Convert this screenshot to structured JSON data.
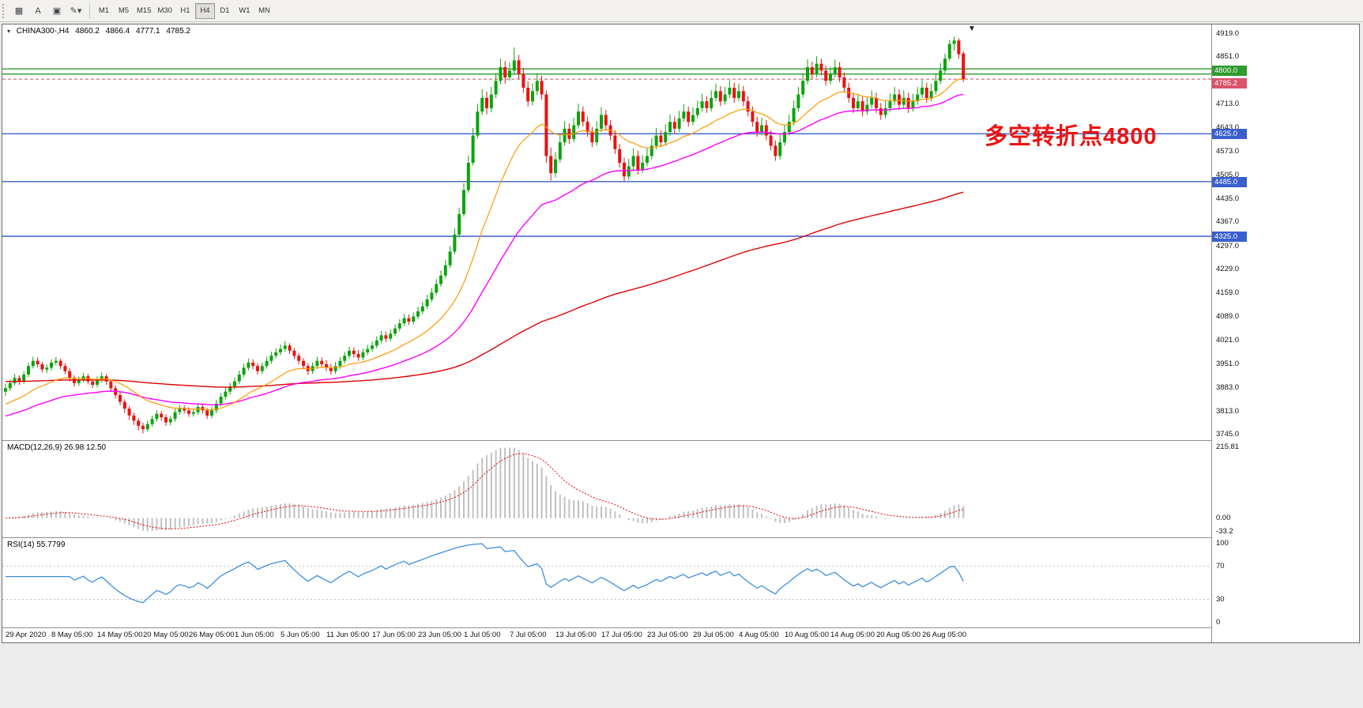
{
  "toolbar": {
    "tools": [
      {
        "name": "indicators-icon",
        "glyph": "▦"
      },
      {
        "name": "text-tool-icon",
        "glyph": "A"
      },
      {
        "name": "textbox-tool-icon",
        "glyph": "▣"
      },
      {
        "name": "drawing-tools-icon",
        "glyph": "✎▾"
      }
    ],
    "timeframes": [
      "M1",
      "M5",
      "M15",
      "M30",
      "H1",
      "H4",
      "D1",
      "W1",
      "MN"
    ],
    "active_timeframe": "H4"
  },
  "chart": {
    "info": {
      "symbol": "CHINA300-,H4",
      "open": "4860.2",
      "high": "4866.4",
      "low": "4777.1",
      "close": "4785.2"
    },
    "annotation": "多空转折点4800",
    "annotation_color": "#EE1111",
    "price_ticks": [
      "4919.0",
      "4851.0",
      "4713.0",
      "4643.0",
      "4573.0",
      "4505.0",
      "4435.0",
      "4367.0",
      "4297.0",
      "4229.0",
      "4159.0",
      "4089.0",
      "4021.0",
      "3951.0",
      "3883.0",
      "3813.0",
      "3745.0"
    ],
    "labels": {
      "resistance": {
        "text": "4800.0",
        "value": 4800,
        "bg": "#2E9B2E"
      },
      "current": {
        "text": "4785.2",
        "value": 4785.2,
        "bg": "#D9536B"
      },
      "blue_bg": "#3A5FCD",
      "blue_levels": [
        {
          "text": "4625.0",
          "value": 4625
        },
        {
          "text": "4485.0",
          "value": 4485
        },
        {
          "text": "4325.0",
          "value": 4325
        }
      ]
    }
  },
  "macd": {
    "title": "MACD(12,26,9) 26.98 12.50",
    "fast": 12,
    "slow": 26,
    "signal": 9,
    "scale_max": "215.81",
    "scale_zero": "0.00",
    "scale_min": "-33.2"
  },
  "rsi": {
    "title": "RSI(14) 55.7799",
    "period": 14,
    "levels": [
      70,
      30
    ],
    "scale": [
      "100",
      "70",
      "30",
      "0"
    ]
  },
  "chart_data": {
    "type": "candlestick",
    "symbol": "CHINA300-",
    "timeframe": "H4",
    "ylim": [
      3728,
      4945
    ],
    "bars_per_label": 10,
    "x_labels": [
      "29 Apr 2020",
      "8 May 05:00",
      "14 May 05:00",
      "20 May 05:00",
      "26 May 05:00",
      "1 Jun 05:00",
      "5 Jun 05:00",
      "11 Jun 05:00",
      "17 Jun 05:00",
      "23 Jun 05:00",
      "1 Jul 05:00",
      "7 Jul 05:00",
      "13 Jul 05:00",
      "17 Jul 05:00",
      "23 Jul 05:00",
      "29 Jul 05:00",
      "4 Aug 05:00",
      "10 Aug 05:00",
      "14 Aug 05:00",
      "20 Aug 05:00",
      "26 Aug 05:00"
    ],
    "levels": {
      "green": [
        4815,
        4800
      ],
      "blue": [
        4625,
        4485,
        4325
      ],
      "current": 4785.2
    },
    "colors": {
      "up": "#0CA30C",
      "down": "#E81212",
      "ma_fast": "#FF9900",
      "ma_mid": "#FF00FF",
      "ma_slow": "#E00000",
      "level_green": "#2E9B2E",
      "level_blue": "#3A5FCD",
      "current_line": "#C94F63",
      "macd_hist": "#C0C0C0",
      "macd_signal": "#E00000",
      "rsi": "#3F8EDE"
    },
    "candles": [
      [
        3870,
        3892,
        3858,
        3880
      ],
      [
        3880,
        3905,
        3872,
        3895
      ],
      [
        3895,
        3922,
        3888,
        3910
      ],
      [
        3910,
        3918,
        3890,
        3900
      ],
      [
        3900,
        3930,
        3893,
        3920
      ],
      [
        3920,
        3955,
        3912,
        3945
      ],
      [
        3945,
        3972,
        3938,
        3960
      ],
      [
        3960,
        3970,
        3941,
        3950
      ],
      [
        3950,
        3958,
        3926,
        3935
      ],
      [
        3935,
        3950,
        3924,
        3940
      ],
      [
        3940,
        3964,
        3932,
        3955
      ],
      [
        3955,
        3971,
        3947,
        3960
      ],
      [
        3960,
        3967,
        3936,
        3945
      ],
      [
        3945,
        3953,
        3921,
        3930
      ],
      [
        3930,
        3938,
        3900,
        3910
      ],
      [
        3910,
        3918,
        3885,
        3895
      ],
      [
        3895,
        3914,
        3887,
        3905
      ],
      [
        3905,
        3925,
        3897,
        3915
      ],
      [
        3915,
        3922,
        3891,
        3900
      ],
      [
        3900,
        3908,
        3880,
        3890
      ],
      [
        3890,
        3915,
        3882,
        3905
      ],
      [
        3905,
        3926,
        3897,
        3915
      ],
      [
        3915,
        3921,
        3890,
        3900
      ],
      [
        3900,
        3906,
        3870,
        3880
      ],
      [
        3880,
        3888,
        3850,
        3860
      ],
      [
        3860,
        3868,
        3830,
        3840
      ],
      [
        3840,
        3848,
        3808,
        3820
      ],
      [
        3820,
        3828,
        3788,
        3800
      ],
      [
        3800,
        3809,
        3773,
        3785
      ],
      [
        3785,
        3793,
        3756,
        3770
      ],
      [
        3770,
        3779,
        3748,
        3760
      ],
      [
        3760,
        3785,
        3752,
        3775
      ],
      [
        3775,
        3800,
        3767,
        3790
      ],
      [
        3790,
        3815,
        3782,
        3805
      ],
      [
        3805,
        3813,
        3785,
        3795
      ],
      [
        3795,
        3803,
        3770,
        3780
      ],
      [
        3780,
        3800,
        3771,
        3790
      ],
      [
        3790,
        3820,
        3782,
        3810
      ],
      [
        3810,
        3831,
        3802,
        3820
      ],
      [
        3820,
        3830,
        3806,
        3815
      ],
      [
        3815,
        3824,
        3796,
        3805
      ],
      [
        3805,
        3820,
        3797,
        3810
      ],
      [
        3810,
        3835,
        3802,
        3825
      ],
      [
        3825,
        3833,
        3806,
        3815
      ],
      [
        3815,
        3822,
        3790,
        3800
      ],
      [
        3800,
        3826,
        3792,
        3815
      ],
      [
        3815,
        3846,
        3807,
        3835
      ],
      [
        3835,
        3866,
        3827,
        3855
      ],
      [
        3855,
        3882,
        3847,
        3870
      ],
      [
        3870,
        3896,
        3862,
        3885
      ],
      [
        3885,
        3912,
        3877,
        3900
      ],
      [
        3900,
        3932,
        3892,
        3920
      ],
      [
        3920,
        3952,
        3912,
        3940
      ],
      [
        3940,
        3967,
        3932,
        3955
      ],
      [
        3955,
        3965,
        3936,
        3945
      ],
      [
        3945,
        3953,
        3920,
        3930
      ],
      [
        3930,
        3956,
        3922,
        3945
      ],
      [
        3945,
        3972,
        3937,
        3960
      ],
      [
        3960,
        3987,
        3952,
        3975
      ],
      [
        3975,
        3997,
        3967,
        3985
      ],
      [
        3985,
        4008,
        3977,
        3995
      ],
      [
        3995,
        4018,
        3987,
        4005
      ],
      [
        4005,
        4012,
        3980,
        3990
      ],
      [
        3990,
        3998,
        3965,
        3975
      ],
      [
        3975,
        3983,
        3950,
        3960
      ],
      [
        3960,
        3968,
        3935,
        3945
      ],
      [
        3945,
        3953,
        3920,
        3930
      ],
      [
        3930,
        3956,
        3922,
        3945
      ],
      [
        3945,
        3972,
        3937,
        3960
      ],
      [
        3960,
        3970,
        3940,
        3950
      ],
      [
        3950,
        3962,
        3930,
        3940
      ],
      [
        3940,
        3951,
        3920,
        3930
      ],
      [
        3930,
        3957,
        3922,
        3945
      ],
      [
        3945,
        3971,
        3937,
        3960
      ],
      [
        3960,
        3986,
        3952,
        3975
      ],
      [
        3975,
        4002,
        3967,
        3990
      ],
      [
        3990,
        4000,
        3970,
        3980
      ],
      [
        3980,
        3992,
        3960,
        3970
      ],
      [
        3970,
        3996,
        3962,
        3985
      ],
      [
        3985,
        4007,
        3977,
        3995
      ],
      [
        3995,
        4017,
        3987,
        4005
      ],
      [
        4005,
        4032,
        3997,
        4020
      ],
      [
        4020,
        4047,
        4012,
        4035
      ],
      [
        4035,
        4046,
        4015,
        4025
      ],
      [
        4025,
        4052,
        4017,
        4040
      ],
      [
        4040,
        4067,
        4032,
        4055
      ],
      [
        4055,
        4082,
        4047,
        4070
      ],
      [
        4070,
        4097,
        4062,
        4085
      ],
      [
        4085,
        4096,
        4065,
        4075
      ],
      [
        4075,
        4102,
        4067,
        4090
      ],
      [
        4090,
        4118,
        4082,
        4105
      ],
      [
        4105,
        4133,
        4097,
        4120
      ],
      [
        4120,
        4153,
        4112,
        4140
      ],
      [
        4140,
        4174,
        4132,
        4160
      ],
      [
        4160,
        4199,
        4152,
        4185
      ],
      [
        4185,
        4225,
        4177,
        4210
      ],
      [
        4210,
        4256,
        4202,
        4240
      ],
      [
        4240,
        4297,
        4232,
        4280
      ],
      [
        4280,
        4348,
        4272,
        4330
      ],
      [
        4330,
        4409,
        4322,
        4390
      ],
      [
        4390,
        4480,
        4382,
        4460
      ],
      [
        4460,
        4561,
        4452,
        4540
      ],
      [
        4540,
        4642,
        4532,
        4620
      ],
      [
        4620,
        4713,
        4612,
        4690
      ],
      [
        4690,
        4755,
        4680,
        4730
      ],
      [
        4730,
        4748,
        4682,
        4700
      ],
      [
        4700,
        4762,
        4688,
        4740
      ],
      [
        4740,
        4803,
        4730,
        4780
      ],
      [
        4780,
        4845,
        4770,
        4820
      ],
      [
        4820,
        4838,
        4772,
        4790
      ],
      [
        4790,
        4833,
        4780,
        4810
      ],
      [
        4810,
        4878,
        4800,
        4840
      ],
      [
        4840,
        4856,
        4785,
        4800
      ],
      [
        4800,
        4818,
        4745,
        4760
      ],
      [
        4760,
        4778,
        4705,
        4720
      ],
      [
        4720,
        4772,
        4708,
        4750
      ],
      [
        4750,
        4802,
        4738,
        4780
      ],
      [
        4780,
        4795,
        4725,
        4740
      ],
      [
        4740,
        4752,
        4540,
        4560
      ],
      [
        4560,
        4585,
        4488,
        4510
      ],
      [
        4510,
        4572,
        4497,
        4550
      ],
      [
        4550,
        4622,
        4540,
        4600
      ],
      [
        4600,
        4662,
        4590,
        4640
      ],
      [
        4640,
        4655,
        4596,
        4610
      ],
      [
        4610,
        4672,
        4600,
        4650
      ],
      [
        4650,
        4713,
        4640,
        4690
      ],
      [
        4690,
        4705,
        4646,
        4660
      ],
      [
        4660,
        4675,
        4616,
        4630
      ],
      [
        4630,
        4645,
        4586,
        4600
      ],
      [
        4600,
        4662,
        4590,
        4640
      ],
      [
        4640,
        4703,
        4630,
        4680
      ],
      [
        4680,
        4695,
        4636,
        4650
      ],
      [
        4650,
        4665,
        4606,
        4620
      ],
      [
        4620,
        4635,
        4566,
        4580
      ],
      [
        4580,
        4595,
        4526,
        4540
      ],
      [
        4540,
        4555,
        4486,
        4500
      ],
      [
        4500,
        4552,
        4490,
        4530
      ],
      [
        4530,
        4582,
        4520,
        4560
      ],
      [
        4560,
        4575,
        4506,
        4520
      ],
      [
        4520,
        4562,
        4510,
        4540
      ],
      [
        4540,
        4582,
        4530,
        4560
      ],
      [
        4560,
        4612,
        4550,
        4590
      ],
      [
        4590,
        4642,
        4580,
        4620
      ],
      [
        4620,
        4635,
        4586,
        4600
      ],
      [
        4600,
        4652,
        4590,
        4630
      ],
      [
        4630,
        4682,
        4620,
        4660
      ],
      [
        4660,
        4675,
        4626,
        4640
      ],
      [
        4640,
        4692,
        4630,
        4670
      ],
      [
        4670,
        4712,
        4660,
        4690
      ],
      [
        4690,
        4705,
        4646,
        4660
      ],
      [
        4660,
        4702,
        4650,
        4680
      ],
      [
        4680,
        4722,
        4670,
        4700
      ],
      [
        4700,
        4742,
        4690,
        4720
      ],
      [
        4720,
        4735,
        4686,
        4700
      ],
      [
        4700,
        4752,
        4690,
        4730
      ],
      [
        4730,
        4772,
        4720,
        4750
      ],
      [
        4750,
        4765,
        4706,
        4720
      ],
      [
        4720,
        4762,
        4710,
        4740
      ],
      [
        4740,
        4782,
        4730,
        4760
      ],
      [
        4760,
        4775,
        4716,
        4730
      ],
      [
        4730,
        4772,
        4720,
        4750
      ],
      [
        4750,
        4765,
        4706,
        4720
      ],
      [
        4720,
        4735,
        4676,
        4690
      ],
      [
        4690,
        4705,
        4646,
        4660
      ],
      [
        4660,
        4675,
        4616,
        4630
      ],
      [
        4630,
        4672,
        4620,
        4650
      ],
      [
        4650,
        4665,
        4606,
        4620
      ],
      [
        4620,
        4635,
        4576,
        4590
      ],
      [
        4590,
        4605,
        4546,
        4560
      ],
      [
        4560,
        4622,
        4550,
        4600
      ],
      [
        4600,
        4652,
        4590,
        4630
      ],
      [
        4630,
        4682,
        4620,
        4660
      ],
      [
        4660,
        4722,
        4650,
        4700
      ],
      [
        4700,
        4762,
        4690,
        4740
      ],
      [
        4740,
        4802,
        4730,
        4780
      ],
      [
        4780,
        4843,
        4770,
        4820
      ],
      [
        4820,
        4836,
        4786,
        4800
      ],
      [
        4800,
        4852,
        4790,
        4830
      ],
      [
        4830,
        4845,
        4796,
        4810
      ],
      [
        4810,
        4825,
        4766,
        4780
      ],
      [
        4780,
        4822,
        4770,
        4800
      ],
      [
        4800,
        4842,
        4790,
        4820
      ],
      [
        4820,
        4835,
        4776,
        4790
      ],
      [
        4790,
        4805,
        4746,
        4760
      ],
      [
        4760,
        4775,
        4716,
        4730
      ],
      [
        4730,
        4745,
        4686,
        4700
      ],
      [
        4700,
        4742,
        4690,
        4720
      ],
      [
        4720,
        4735,
        4676,
        4690
      ],
      [
        4690,
        4732,
        4680,
        4710
      ],
      [
        4710,
        4752,
        4700,
        4730
      ],
      [
        4730,
        4745,
        4686,
        4700
      ],
      [
        4700,
        4715,
        4666,
        4680
      ],
      [
        4680,
        4722,
        4670,
        4700
      ],
      [
        4700,
        4742,
        4690,
        4720
      ],
      [
        4720,
        4762,
        4710,
        4740
      ],
      [
        4740,
        4755,
        4696,
        4710
      ],
      [
        4710,
        4752,
        4700,
        4730
      ],
      [
        4730,
        4745,
        4686,
        4700
      ],
      [
        4700,
        4742,
        4690,
        4720
      ],
      [
        4720,
        4762,
        4710,
        4740
      ],
      [
        4740,
        4782,
        4730,
        4760
      ],
      [
        4760,
        4775,
        4716,
        4730
      ],
      [
        4730,
        4772,
        4720,
        4750
      ],
      [
        4750,
        4802,
        4740,
        4780
      ],
      [
        4780,
        4832,
        4770,
        4810
      ],
      [
        4810,
        4860,
        4800,
        4845
      ],
      [
        4845,
        4900,
        4838,
        4888
      ],
      [
        4888,
        4910,
        4868,
        4898
      ],
      [
        4898,
        4905,
        4845,
        4858
      ],
      [
        4860.2,
        4866.4,
        4777.1,
        4785.2
      ]
    ]
  }
}
